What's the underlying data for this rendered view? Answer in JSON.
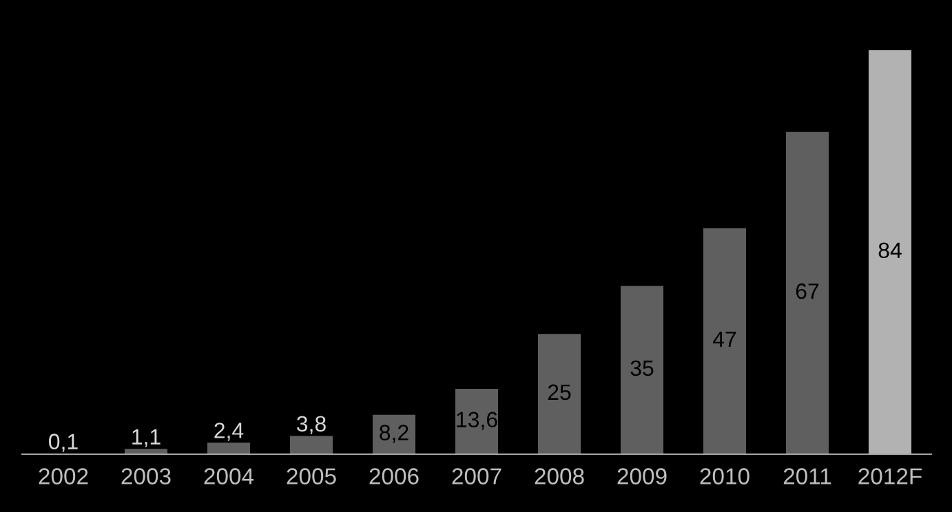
{
  "chart_data": {
    "type": "bar",
    "categories": [
      "2002",
      "2003",
      "2004",
      "2005",
      "2006",
      "2007",
      "2008",
      "2009",
      "2010",
      "2011",
      "2012F"
    ],
    "values": [
      0.1,
      1.1,
      2.4,
      3.8,
      8.2,
      13.6,
      25,
      35,
      47,
      67,
      84
    ],
    "value_labels": [
      "0,1",
      "1,1",
      "2,4",
      "3,8",
      "8,2",
      "13,6",
      "25",
      "35",
      "47",
      "67",
      "84"
    ],
    "colors": [
      "#5f5f5f",
      "#5f5f5f",
      "#5f5f5f",
      "#5f5f5f",
      "#5f5f5f",
      "#5f5f5f",
      "#5f5f5f",
      "#5f5f5f",
      "#5f5f5f",
      "#5f5f5f",
      "#b2b2b2"
    ],
    "grid": false,
    "legend": false
  }
}
